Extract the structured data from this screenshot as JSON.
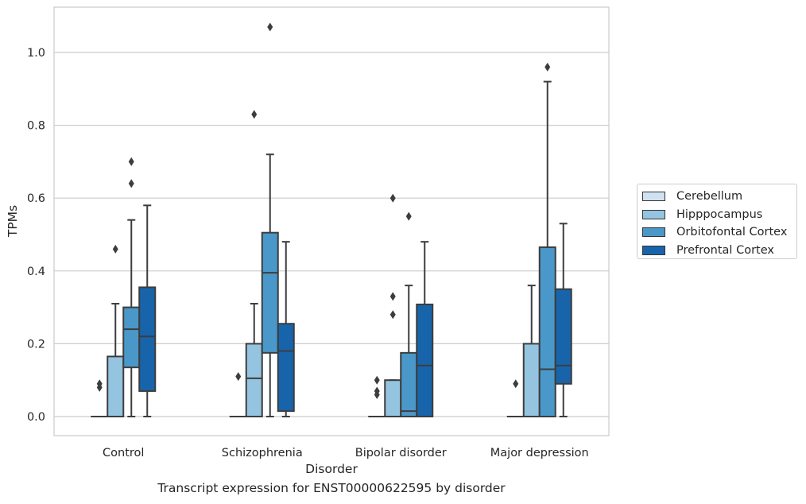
{
  "caption": "Transcript expression for ENST00000622595 by disorder",
  "chart_data": {
    "type": "box",
    "xlabel": "Disorder",
    "ylabel": "TPMs",
    "ylim": [
      -0.05,
      1.13
    ],
    "yticks": [
      0.0,
      0.2,
      0.4,
      0.6,
      0.8,
      1.0
    ],
    "ytick_labels": [
      "0.0",
      "0.2",
      "0.4",
      "0.6",
      "0.8",
      "1.0"
    ],
    "grid": "horizontal",
    "legend_position": "right",
    "categories": [
      "Control",
      "Schizophrenia",
      "Bipolar disorder",
      "Major depression"
    ],
    "series": [
      {
        "name": "Cerebellum",
        "color": "#d0e1f2",
        "boxes": [
          {
            "q1": 0,
            "median": 0,
            "q3": 0,
            "whisker_low": 0,
            "whisker_high": 0,
            "outliers": [
              0.08,
              0.09
            ]
          },
          {
            "q1": 0,
            "median": 0,
            "q3": 0,
            "whisker_low": 0,
            "whisker_high": 0,
            "outliers": [
              0.11
            ]
          },
          {
            "q1": 0,
            "median": 0,
            "q3": 0,
            "whisker_low": 0,
            "whisker_high": 0,
            "outliers": [
              0.06,
              0.07,
              0.1
            ]
          },
          {
            "q1": 0,
            "median": 0,
            "q3": 0,
            "whisker_low": 0,
            "whisker_high": 0,
            "outliers": [
              0.09
            ]
          }
        ]
      },
      {
        "name": "Hipppocampus",
        "color": "#94c4df",
        "boxes": [
          {
            "q1": 0,
            "median": 0,
            "q3": 0.165,
            "whisker_low": 0,
            "whisker_high": 0.31,
            "outliers": [
              0.46
            ]
          },
          {
            "q1": 0,
            "median": 0.105,
            "q3": 0.2,
            "whisker_low": 0,
            "whisker_high": 0.31,
            "outliers": [
              0.83
            ]
          },
          {
            "q1": 0,
            "median": 0,
            "q3": 0.1,
            "whisker_low": 0,
            "whisker_high": 0.1,
            "outliers": [
              0.28,
              0.33,
              0.6
            ]
          },
          {
            "q1": 0,
            "median": 0,
            "q3": 0.2,
            "whisker_low": 0,
            "whisker_high": 0.36,
            "outliers": []
          }
        ]
      },
      {
        "name": "Orbitofontal Cortex",
        "color": "#4a98c9",
        "boxes": [
          {
            "q1": 0.135,
            "median": 0.24,
            "q3": 0.3,
            "whisker_low": 0,
            "whisker_high": 0.54,
            "outliers": [
              0.64,
              0.7
            ]
          },
          {
            "q1": 0.175,
            "median": 0.395,
            "q3": 0.505,
            "whisker_low": 0,
            "whisker_high": 0.72,
            "outliers": [
              1.07
            ]
          },
          {
            "q1": 0,
            "median": 0.015,
            "q3": 0.175,
            "whisker_low": 0,
            "whisker_high": 0.36,
            "outliers": [
              0.55
            ]
          },
          {
            "q1": 0,
            "median": 0.13,
            "q3": 0.465,
            "whisker_low": 0,
            "whisker_high": 0.92,
            "outliers": [
              0.96
            ]
          }
        ]
      },
      {
        "name": "Prefrontal Cortex",
        "color": "#1764ab",
        "boxes": [
          {
            "q1": 0.07,
            "median": 0.22,
            "q3": 0.355,
            "whisker_low": 0,
            "whisker_high": 0.58,
            "outliers": []
          },
          {
            "q1": 0.015,
            "median": 0.18,
            "q3": 0.255,
            "whisker_low": 0,
            "whisker_high": 0.48,
            "outliers": []
          },
          {
            "q1": 0,
            "median": 0.14,
            "q3": 0.308,
            "whisker_low": 0,
            "whisker_high": 0.48,
            "outliers": []
          },
          {
            "q1": 0.09,
            "median": 0.14,
            "q3": 0.35,
            "whisker_low": 0,
            "whisker_high": 0.53,
            "outliers": []
          }
        ]
      }
    ]
  }
}
